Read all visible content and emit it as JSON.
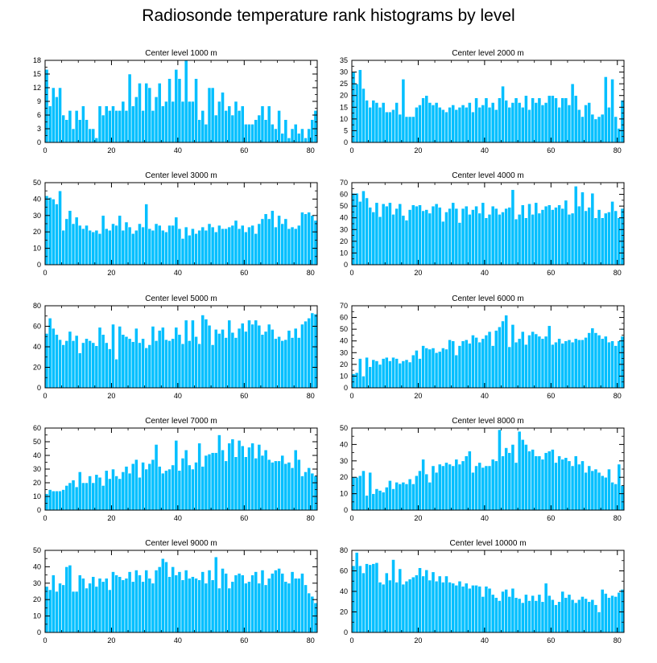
{
  "title": "Radiosonde temperature rank histograms by level",
  "colors": {
    "bar": "#00bfff",
    "bar_edge": "#ffffff",
    "axis": "#000000",
    "background": "#ffffff"
  },
  "chart_data": [
    {
      "type": "bar",
      "title": "Center level 1000 m",
      "xlabel": "",
      "ylabel": "",
      "xlim": [
        0,
        82
      ],
      "xticks": [
        0,
        20,
        40,
        60,
        80
      ],
      "ylim": [
        0,
        18
      ],
      "yticks": [
        0,
        3,
        6,
        9,
        12,
        15,
        18
      ],
      "values": [
        16,
        8,
        12,
        10,
        12,
        6,
        5,
        7,
        3,
        7,
        5,
        8,
        5,
        3,
        3,
        1,
        8,
        6,
        8,
        7,
        8,
        7,
        7,
        9,
        7,
        15,
        8,
        10,
        13,
        7,
        13,
        12,
        7,
        10,
        13,
        8,
        9,
        14,
        9,
        16,
        14,
        9,
        18,
        9,
        9,
        14,
        5,
        7,
        4,
        12,
        12,
        6,
        9,
        11,
        7,
        8,
        6,
        9,
        7,
        8,
        4,
        4,
        4,
        5,
        6,
        8,
        5,
        8,
        4,
        3,
        7,
        2,
        5,
        1,
        3,
        4,
        2,
        3,
        1,
        3,
        5,
        7
      ]
    },
    {
      "type": "bar",
      "title": "Center level 2000 m",
      "xlabel": "",
      "ylabel": "",
      "xlim": [
        0,
        82
      ],
      "xticks": [
        0,
        20,
        40,
        60,
        80
      ],
      "ylim": [
        0,
        35
      ],
      "yticks": [
        0,
        5,
        10,
        15,
        20,
        25,
        30,
        35
      ],
      "values": [
        30,
        25,
        31,
        23,
        18,
        15,
        18,
        17,
        15,
        17,
        13,
        13,
        14,
        17,
        12,
        27,
        11,
        11,
        11,
        15,
        16,
        19,
        20,
        17,
        16,
        17,
        15,
        14,
        13,
        15,
        16,
        14,
        15,
        16,
        15,
        17,
        13,
        19,
        15,
        16,
        19,
        15,
        17,
        14,
        19,
        24,
        18,
        15,
        17,
        19,
        17,
        15,
        20,
        14,
        19,
        17,
        19,
        16,
        17,
        20,
        20,
        19,
        15,
        19,
        19,
        16,
        25,
        20,
        14,
        11,
        16,
        17,
        12,
        10,
        11,
        12,
        28,
        15,
        27,
        11,
        6,
        18
      ]
    },
    {
      "type": "bar",
      "title": "Center level 3000 m",
      "xlabel": "",
      "ylabel": "",
      "xlim": [
        0,
        82
      ],
      "xticks": [
        0,
        20,
        40,
        60,
        80
      ],
      "ylim": [
        0,
        50
      ],
      "yticks": [
        0,
        10,
        20,
        30,
        40,
        50
      ],
      "values": [
        42,
        41,
        40,
        37,
        45,
        21,
        28,
        33,
        25,
        29,
        24,
        22,
        24,
        21,
        20,
        21,
        19,
        30,
        22,
        21,
        25,
        24,
        30,
        21,
        26,
        23,
        19,
        21,
        25,
        23,
        37,
        22,
        21,
        25,
        24,
        21,
        20,
        24,
        24,
        29,
        22,
        16,
        23,
        18,
        22,
        19,
        21,
        23,
        21,
        25,
        23,
        20,
        24,
        22,
        22,
        23,
        24,
        27,
        22,
        24,
        20,
        23,
        24,
        19,
        25,
        28,
        31,
        28,
        33,
        23,
        30,
        25,
        28,
        22,
        23,
        22,
        24,
        32,
        31,
        32,
        30,
        27
      ]
    },
    {
      "type": "bar",
      "title": "Center level 4000 m",
      "xlabel": "",
      "ylabel": "",
      "xlim": [
        0,
        82
      ],
      "xticks": [
        0,
        20,
        40,
        60,
        80
      ],
      "ylim": [
        0,
        70
      ],
      "yticks": [
        0,
        10,
        20,
        30,
        40,
        50,
        60,
        70
      ],
      "values": [
        61,
        61,
        54,
        63,
        57,
        49,
        45,
        53,
        41,
        52,
        50,
        53,
        43,
        48,
        52,
        42,
        38,
        47,
        51,
        50,
        51,
        46,
        47,
        44,
        50,
        52,
        49,
        37,
        45,
        48,
        53,
        48,
        36,
        48,
        50,
        43,
        47,
        50,
        44,
        53,
        40,
        43,
        50,
        48,
        43,
        45,
        48,
        49,
        64,
        39,
        43,
        51,
        40,
        52,
        43,
        53,
        44,
        47,
        50,
        51,
        47,
        49,
        51,
        48,
        55,
        43,
        44,
        67,
        50,
        62,
        46,
        49,
        61,
        40,
        47,
        40,
        44,
        45,
        54,
        46,
        40,
        48
      ]
    },
    {
      "type": "bar",
      "title": "Center level 5000 m",
      "xlabel": "",
      "ylabel": "",
      "xlim": [
        0,
        82
      ],
      "xticks": [
        0,
        20,
        40,
        60,
        80
      ],
      "ylim": [
        0,
        80
      ],
      "yticks": [
        0,
        20,
        40,
        60,
        80
      ],
      "values": [
        53,
        68,
        58,
        52,
        47,
        42,
        46,
        55,
        46,
        51,
        34,
        44,
        48,
        46,
        44,
        41,
        59,
        52,
        44,
        38,
        62,
        28,
        60,
        52,
        50,
        48,
        45,
        58,
        44,
        48,
        39,
        42,
        60,
        46,
        56,
        59,
        47,
        46,
        48,
        59,
        52,
        43,
        66,
        46,
        66,
        50,
        43,
        71,
        67,
        61,
        42,
        57,
        53,
        57,
        49,
        66,
        54,
        49,
        58,
        63,
        55,
        66,
        62,
        66,
        61,
        52,
        55,
        62,
        57,
        48,
        50,
        46,
        47,
        56,
        49,
        58,
        49,
        62,
        65,
        68,
        73,
        72
      ]
    },
    {
      "type": "bar",
      "title": "Center level 6000 m",
      "xlabel": "",
      "ylabel": "",
      "xlim": [
        0,
        82
      ],
      "xticks": [
        0,
        20,
        40,
        60,
        80
      ],
      "ylim": [
        0,
        70
      ],
      "yticks": [
        0,
        10,
        20,
        30,
        40,
        50,
        60,
        70
      ],
      "values": [
        12,
        13,
        25,
        10,
        26,
        18,
        24,
        23,
        20,
        25,
        26,
        23,
        26,
        25,
        21,
        23,
        24,
        22,
        28,
        32,
        25,
        36,
        34,
        33,
        34,
        30,
        31,
        34,
        33,
        41,
        40,
        28,
        36,
        40,
        41,
        38,
        45,
        43,
        39,
        42,
        45,
        48,
        36,
        49,
        52,
        57,
        62,
        35,
        54,
        39,
        42,
        48,
        37,
        45,
        48,
        46,
        44,
        42,
        44,
        53,
        37,
        39,
        42,
        38,
        40,
        41,
        39,
        42,
        41,
        41,
        43,
        47,
        51,
        47,
        45,
        42,
        44,
        39,
        40,
        36,
        40,
        44
      ]
    },
    {
      "type": "bar",
      "title": "Center level 7000 m",
      "xlabel": "",
      "ylabel": "",
      "xlim": [
        0,
        82
      ],
      "xticks": [
        0,
        20,
        40,
        60,
        80
      ],
      "ylim": [
        0,
        60
      ],
      "yticks": [
        0,
        10,
        20,
        30,
        40,
        50,
        60
      ],
      "values": [
        12,
        15,
        14,
        14,
        14,
        15,
        18,
        20,
        22,
        17,
        28,
        20,
        20,
        25,
        20,
        26,
        24,
        18,
        29,
        23,
        30,
        25,
        23,
        28,
        32,
        27,
        34,
        37,
        24,
        35,
        30,
        34,
        37,
        48,
        32,
        27,
        29,
        30,
        33,
        51,
        29,
        38,
        44,
        33,
        30,
        35,
        49,
        32,
        40,
        41,
        42,
        42,
        55,
        44,
        36,
        49,
        52,
        39,
        51,
        47,
        39,
        46,
        49,
        38,
        48,
        40,
        44,
        37,
        35,
        36,
        36,
        40,
        34,
        35,
        31,
        44,
        37,
        25,
        28,
        31,
        27,
        25
      ]
    },
    {
      "type": "bar",
      "title": "Center level 8000 m",
      "xlabel": "",
      "ylabel": "",
      "xlim": [
        0,
        82
      ],
      "xticks": [
        0,
        20,
        40,
        60,
        80
      ],
      "ylim": [
        0,
        50
      ],
      "yticks": [
        0,
        10,
        20,
        30,
        40,
        50
      ],
      "values": [
        20,
        20,
        21,
        24,
        9,
        23,
        10,
        13,
        12,
        11,
        14,
        18,
        13,
        17,
        16,
        17,
        16,
        19,
        16,
        21,
        24,
        31,
        22,
        17,
        27,
        23,
        28,
        27,
        29,
        28,
        27,
        31,
        28,
        30,
        33,
        36,
        23,
        27,
        29,
        26,
        27,
        27,
        31,
        30,
        49,
        33,
        38,
        35,
        40,
        29,
        48,
        43,
        40,
        36,
        37,
        33,
        33,
        31,
        35,
        36,
        37,
        29,
        33,
        31,
        32,
        30,
        27,
        33,
        28,
        30,
        23,
        27,
        24,
        25,
        23,
        21,
        20,
        25,
        17,
        16,
        28,
        15
      ]
    },
    {
      "type": "bar",
      "title": "Center level 9000 m",
      "xlabel": "",
      "ylabel": "",
      "xlim": [
        0,
        82
      ],
      "xticks": [
        0,
        20,
        40,
        60,
        80
      ],
      "ylim": [
        0,
        50
      ],
      "yticks": [
        0,
        10,
        20,
        30,
        40,
        50
      ],
      "values": [
        28,
        26,
        35,
        25,
        30,
        29,
        40,
        41,
        25,
        25,
        35,
        33,
        27,
        30,
        34,
        28,
        33,
        31,
        33,
        26,
        37,
        35,
        34,
        32,
        33,
        37,
        31,
        38,
        35,
        31,
        38,
        33,
        30,
        38,
        40,
        45,
        43,
        34,
        40,
        35,
        37,
        32,
        38,
        33,
        34,
        33,
        32,
        37,
        30,
        38,
        32,
        46,
        27,
        39,
        36,
        27,
        31,
        35,
        36,
        35,
        30,
        31,
        35,
        37,
        30,
        38,
        29,
        33,
        36,
        38,
        39,
        36,
        31,
        30,
        37,
        33,
        33,
        36,
        29,
        24,
        22,
        18
      ]
    },
    {
      "type": "bar",
      "title": "Center level 10000 m",
      "xlabel": "",
      "ylabel": "",
      "xlim": [
        0,
        82
      ],
      "xticks": [
        0,
        20,
        40,
        60,
        80
      ],
      "ylim": [
        0,
        80
      ],
      "yticks": [
        0,
        20,
        40,
        60,
        80
      ],
      "values": [
        65,
        78,
        65,
        58,
        67,
        66,
        67,
        68,
        49,
        47,
        58,
        51,
        71,
        49,
        62,
        47,
        50,
        52,
        54,
        56,
        63,
        55,
        61,
        51,
        59,
        50,
        55,
        49,
        55,
        49,
        48,
        46,
        50,
        45,
        48,
        43,
        46,
        46,
        45,
        35,
        45,
        43,
        37,
        34,
        31,
        40,
        42,
        35,
        43,
        34,
        33,
        29,
        37,
        31,
        36,
        31,
        37,
        30,
        48,
        36,
        32,
        27,
        30,
        40,
        34,
        37,
        32,
        29,
        32,
        35,
        33,
        30,
        32,
        27,
        20,
        42,
        38,
        34,
        36,
        35,
        39,
        42
      ]
    }
  ]
}
